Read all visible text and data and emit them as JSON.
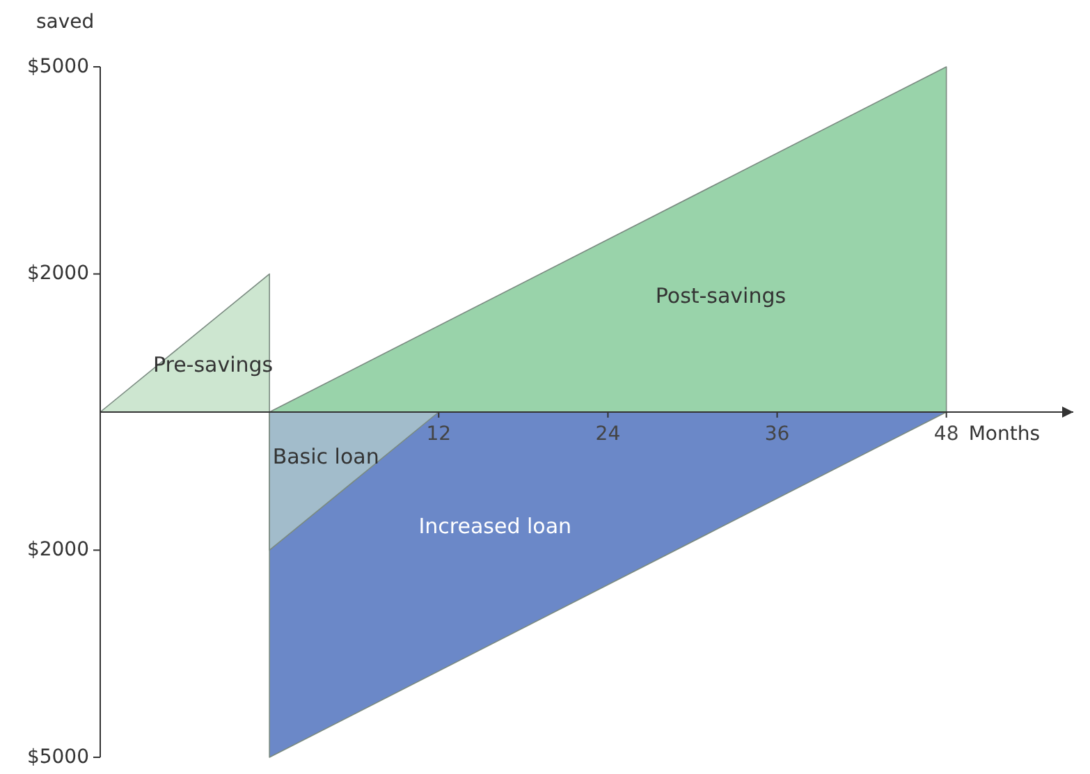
{
  "chart_data": {
    "type": "area",
    "ylabel": "saved",
    "xlabel": "Months",
    "legend": false,
    "grid": false,
    "xlim": [
      -12,
      57
    ],
    "xticks": [
      12,
      24,
      36,
      48
    ],
    "ylim": [
      -5000,
      5000
    ],
    "yticks": [
      {
        "value": 5000,
        "label": "$5000"
      },
      {
        "value": 2000,
        "label": "$2000"
      },
      {
        "value": -2000,
        "label": "$2000"
      },
      {
        "value": -5000,
        "label": "$5000"
      }
    ],
    "series": [
      {
        "name": "Pre-savings",
        "color": "#cde6d0",
        "x": [
          -12,
          0
        ],
        "values": [
          0,
          2000
        ]
      },
      {
        "name": "Post-savings",
        "color": "#99d3aa",
        "x": [
          0,
          48
        ],
        "values": [
          0,
          5000
        ]
      },
      {
        "name": "Increased loan",
        "color": "#6b88c8",
        "x": [
          0,
          48
        ],
        "values": [
          -5000,
          0
        ]
      },
      {
        "name": "Basic loan",
        "color": "#a2bccb",
        "x": [
          0,
          12
        ],
        "values": [
          -2000,
          0
        ]
      }
    ]
  }
}
